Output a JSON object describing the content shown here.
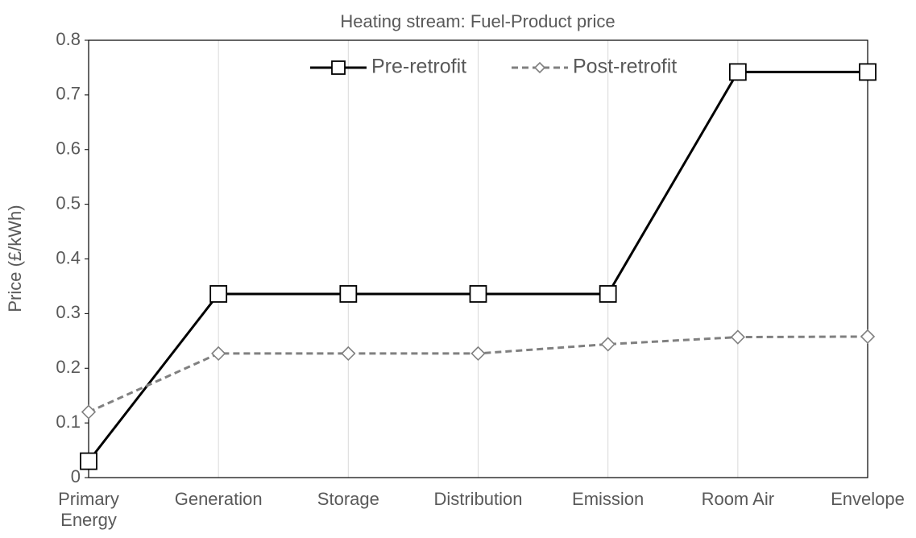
{
  "chart_data": {
    "type": "line",
    "title": "Heating stream: Fuel-Product price",
    "y_label": "Price (£/kWh)",
    "categories": [
      "Primary Energy",
      "Generation",
      "Storage",
      "Distribution",
      "Emission",
      "Room Air",
      "Envelope"
    ],
    "series": [
      {
        "name": "Pre-retrofit",
        "color": "#000000",
        "marker": "square",
        "dashed": false,
        "values": [
          0.03,
          0.336,
          0.336,
          0.336,
          0.336,
          0.742,
          0.742
        ]
      },
      {
        "name": "Post-retrofit",
        "color": "#808080",
        "marker": "diamond",
        "dashed": true,
        "values": [
          0.12,
          0.227,
          0.227,
          0.227,
          0.244,
          0.257,
          0.258
        ]
      }
    ],
    "ylim": [
      0,
      0.8
    ],
    "yticks": [
      0,
      0.1,
      0.2,
      0.3,
      0.4,
      0.5,
      0.6,
      0.7,
      0.8
    ],
    "grid": "x",
    "legend": "top"
  }
}
